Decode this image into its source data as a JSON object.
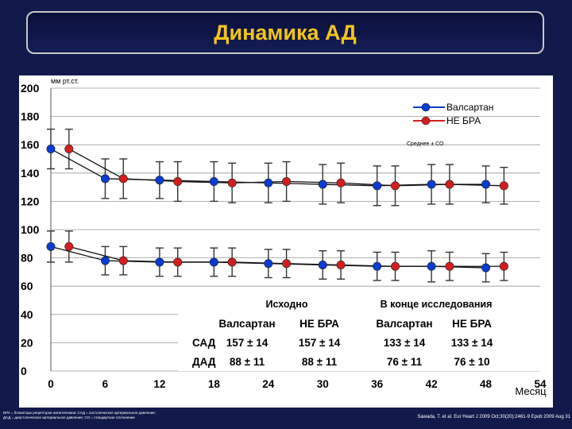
{
  "title": "Динамика АД",
  "chart_data": {
    "type": "line",
    "ylabel": "мм рт.ст.",
    "xlabel": "Месяц",
    "ylim": [
      0,
      200
    ],
    "xlim": [
      0,
      54
    ],
    "yticks": [
      0,
      20,
      40,
      60,
      80,
      100,
      120,
      140,
      160,
      180,
      200
    ],
    "ytick_labels": [
      "0",
      "20",
      "40",
      "60",
      "80",
      "100",
      "120",
      "140",
      "160",
      "180",
      "200"
    ],
    "xticks": [
      0,
      6,
      12,
      18,
      24,
      30,
      36,
      42,
      48,
      54
    ],
    "grid": "horizontal",
    "legend_position": "top-right",
    "annotation": "Среднее ± СО",
    "series": [
      {
        "name": "Валсартан",
        "color": "#0a3cd2",
        "group": "САД",
        "x": [
          0,
          6,
          12,
          18,
          24,
          30,
          36,
          42,
          48
        ],
        "values": [
          157,
          136,
          135,
          134,
          133,
          132,
          131,
          132,
          132
        ],
        "err": [
          14,
          14,
          13,
          14,
          14,
          14,
          14,
          14,
          13
        ]
      },
      {
        "name": "НЕ БРА",
        "color": "#d21e1e",
        "group": "САД",
        "x": [
          2,
          8,
          14,
          20,
          26,
          32,
          38,
          44,
          50
        ],
        "values": [
          157,
          136,
          134,
          133,
          134,
          133,
          131,
          132,
          131
        ],
        "err": [
          14,
          14,
          14,
          14,
          14,
          14,
          14,
          14,
          13
        ]
      },
      {
        "name": "Валсартан",
        "color": "#0a3cd2",
        "group": "ДАД",
        "x": [
          0,
          6,
          12,
          18,
          24,
          30,
          36,
          42,
          48
        ],
        "values": [
          88,
          78,
          77,
          77,
          76,
          75,
          74,
          74,
          73
        ],
        "err": [
          11,
          10,
          10,
          10,
          10,
          10,
          10,
          11,
          10
        ]
      },
      {
        "name": "НЕ БРА",
        "color": "#d21e1e",
        "group": "ДАД",
        "x": [
          2,
          8,
          14,
          20,
          26,
          32,
          38,
          44,
          50
        ],
        "values": [
          88,
          78,
          77,
          77,
          76,
          75,
          74,
          74,
          74
        ],
        "err": [
          11,
          10,
          10,
          10,
          10,
          10,
          10,
          10,
          10
        ]
      }
    ],
    "table": {
      "group_headers": [
        "Исходно",
        "В конце исследования"
      ],
      "col_headers": [
        "Валсартан",
        "НЕ БРА",
        "Валсартан",
        "НЕ БРА"
      ],
      "rows": [
        {
          "label": "САД",
          "cells": [
            "157 ± 14",
            "157 ± 14",
            "133 ± 14",
            "133 ± 14"
          ]
        },
        {
          "label": "ДАД",
          "cells": [
            "88 ± 11",
            "88 ± 11",
            "76 ± 11",
            "76 ± 10"
          ]
        }
      ]
    }
  },
  "footer": {
    "left_line1": "БРА = блокаторы рецепторов ангиотензина; САД = систолическое артериальное давление;",
    "left_line2": "ДАД = диастолическое артериальное давление; СО = стандартное отклонение",
    "right": "Sawada, T. et al. Eur Heart J 2009 Oct;30(20):2461-9 Epub 2009 Aug 31"
  }
}
